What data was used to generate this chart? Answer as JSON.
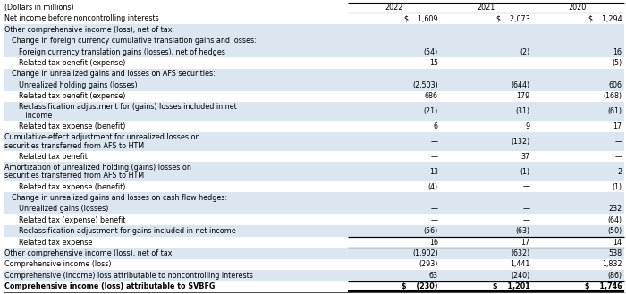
{
  "title": "(Dollars in millions)",
  "col_headers": [
    "2022",
    "2021",
    "2020"
  ],
  "rows": [
    {
      "label": "Net income before noncontrolling interests",
      "indent": 0,
      "bold": false,
      "values": [
        "$    1,609",
        "$    2,073",
        "$    1,294"
      ],
      "bg": "white",
      "hdr_border": true
    },
    {
      "label": "Other comprehensive income (loss), net of tax:",
      "indent": 0,
      "bold": false,
      "values": [
        "",
        "",
        ""
      ],
      "bg": "light"
    },
    {
      "label": "Change in foreign currency cumulative translation gains and losses:",
      "indent": 1,
      "bold": false,
      "values": [
        "",
        "",
        ""
      ],
      "bg": "light"
    },
    {
      "label": "Foreign currency translation gains (losses), net of hedges",
      "indent": 2,
      "bold": false,
      "values": [
        "(54)",
        "(2)",
        "16"
      ],
      "bg": "light"
    },
    {
      "label": "Related tax benefit (expense)",
      "indent": 2,
      "bold": false,
      "values": [
        "15",
        "—",
        "(5)"
      ],
      "bg": "white"
    },
    {
      "label": "Change in unrealized gains and losses on AFS securities:",
      "indent": 1,
      "bold": false,
      "values": [
        "",
        "",
        ""
      ],
      "bg": "light"
    },
    {
      "label": "Unrealized holding gains (losses)",
      "indent": 2,
      "bold": false,
      "values": [
        "(2,503)",
        "(644)",
        "606"
      ],
      "bg": "light"
    },
    {
      "label": "Related tax benefit (expense)",
      "indent": 2,
      "bold": false,
      "values": [
        "686",
        "179",
        "(168)"
      ],
      "bg": "white"
    },
    {
      "label": "Reclassification adjustment for (gains) losses included in net   income",
      "indent": 2,
      "bold": false,
      "values": [
        "(21)",
        "(31)",
        "(61)"
      ],
      "bg": "light",
      "wrap": true
    },
    {
      "label": "Related tax expense (benefit)",
      "indent": 2,
      "bold": false,
      "values": [
        "6",
        "9",
        "17"
      ],
      "bg": "white"
    },
    {
      "label": "Cumulative-effect adjustment for unrealized losses on securities transferred from AFS to HTM",
      "indent": 0,
      "bold": false,
      "values": [
        "—",
        "(132)",
        "—"
      ],
      "bg": "light",
      "wrap": true
    },
    {
      "label": "Related tax benefit",
      "indent": 2,
      "bold": false,
      "values": [
        "—",
        "37",
        "—"
      ],
      "bg": "white"
    },
    {
      "label": "Amortization of unrealized holding (gains) losses on securities transferred from AFS to HTM",
      "indent": 0,
      "bold": false,
      "values": [
        "13",
        "(1)",
        "2"
      ],
      "bg": "light",
      "wrap": true
    },
    {
      "label": "Related tax expense (benefit)",
      "indent": 2,
      "bold": false,
      "values": [
        "(4)",
        "—",
        "(1)"
      ],
      "bg": "white"
    },
    {
      "label": "Change in unrealized gains and losses on cash flow hedges:",
      "indent": 1,
      "bold": false,
      "values": [
        "",
        "",
        ""
      ],
      "bg": "light"
    },
    {
      "label": "Unrealized gains (losses)",
      "indent": 2,
      "bold": false,
      "values": [
        "—",
        "—",
        "232"
      ],
      "bg": "light"
    },
    {
      "label": "Related tax (expense) benefit",
      "indent": 2,
      "bold": false,
      "values": [
        "—",
        "—",
        "(64)"
      ],
      "bg": "white"
    },
    {
      "label": "Reclassification adjustment for gains included in net income",
      "indent": 2,
      "bold": false,
      "values": [
        "(56)",
        "(63)",
        "(50)"
      ],
      "bg": "light"
    },
    {
      "label": "Related tax expense",
      "indent": 2,
      "bold": false,
      "values": [
        "16",
        "17",
        "14"
      ],
      "bg": "white",
      "top_border": true
    },
    {
      "label": "Other comprehensive income (loss), net of tax",
      "indent": 0,
      "bold": false,
      "values": [
        "(1,902)",
        "(632)",
        "538"
      ],
      "bg": "light",
      "top_border": true
    },
    {
      "label": "Comprehensive income (loss)",
      "indent": 0,
      "bold": false,
      "values": [
        "(293)",
        "1,441",
        "1,832"
      ],
      "bg": "white"
    },
    {
      "label": "Comprehensive (income) loss attributable to noncontrolling interests",
      "indent": 0,
      "bold": false,
      "values": [
        "63",
        "(240)",
        "(86)"
      ],
      "bg": "light"
    },
    {
      "label": "Comprehensive income (loss) attributable to SVBFG",
      "indent": 0,
      "bold": true,
      "values": [
        "$    (230)",
        "$    1,201",
        "$    1,746"
      ],
      "bg": "white",
      "top_border": true,
      "double_border": true
    }
  ],
  "light_color": "#dce6f1",
  "white_color": "#ffffff",
  "text_color": "#000000",
  "font_size": 5.8,
  "wrap_split": {
    "Reclassification adjustment for (gains) losses included in net   income": [
      "Reclassification adjustment for (gains) losses included in net",
      "   income"
    ],
    "Cumulative-effect adjustment for unrealized losses on securities transferred from AFS to HTM": [
      "Cumulative-effect adjustment for unrealized losses on securities transferred from AFS to HTM",
      ""
    ],
    "Amortization of unrealized holding (gains) losses on securities transferred from AFS to HTM": [
      "Amortization of unrealized holding (gains) losses on securities transferred from AFS to HTM",
      ""
    ]
  }
}
